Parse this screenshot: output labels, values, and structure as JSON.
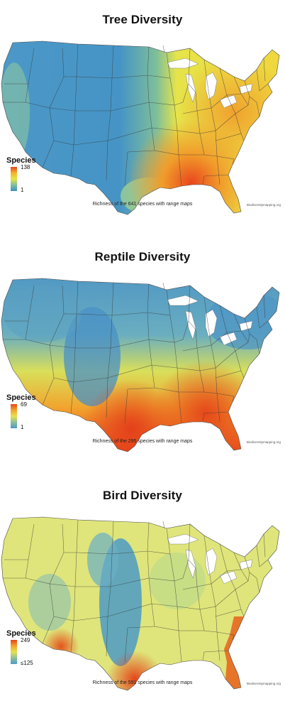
{
  "panels": [
    {
      "title": "Tree Diversity",
      "legend": {
        "label": "Species",
        "max": "138",
        "min": "1"
      },
      "caption": "Richness of the 641 species with range maps",
      "credit": "Biodiversitymapping.org",
      "colors": {
        "low": "#3f8fc4",
        "mid": "#e9e64a",
        "high": "#e8461e"
      }
    },
    {
      "title": "Reptile Diversity",
      "legend": {
        "label": "Species",
        "max": "69",
        "min": "1"
      },
      "caption": "Richness of the 295 species with range maps",
      "credit": "Biodiversitymapping.org",
      "colors": {
        "low": "#4e98c5",
        "mid": "#e6e24e",
        "high": "#e94a17"
      }
    },
    {
      "title": "Bird Diversity",
      "legend": {
        "label": "Species",
        "max": "249",
        "min": "≤125"
      },
      "caption": "Richness of the 591 species with range maps",
      "credit": "Biodiversitymapping.org",
      "colors": {
        "low": "#4d9bc6",
        "mid": "#dfe57a",
        "high": "#e4451a"
      }
    }
  ]
}
